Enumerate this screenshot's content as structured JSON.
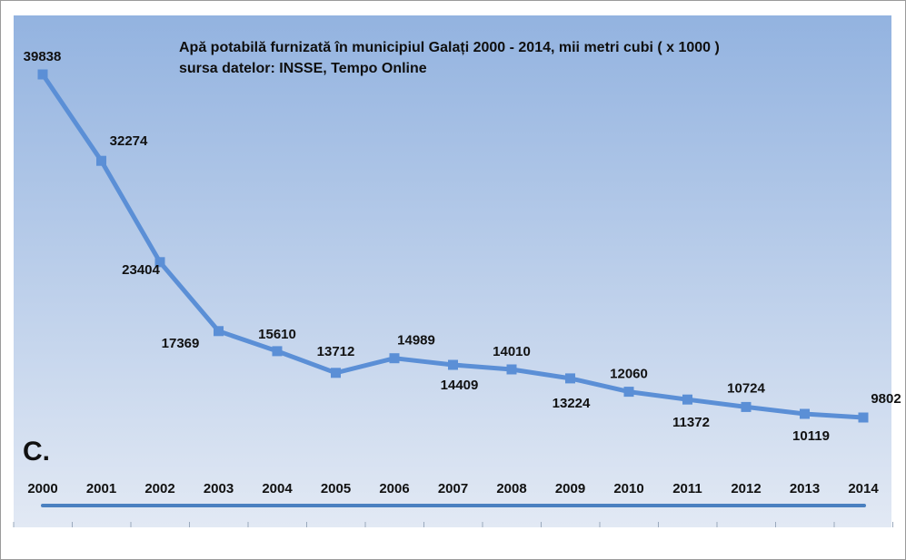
{
  "title": "Apă potabilă furnizată în municipiul Galați 2000 - 2014, mii metri cubi ( x 1000 )",
  "subtitle": "sursa datelor: INSSE, Tempo Online",
  "panel_letter": "C.",
  "colors": {
    "bg_top": "#93b3e0",
    "bg_bottom": "#e2e9f4",
    "line": "#5b8fd6",
    "marker": "#5b8fd6",
    "axis_line": "#4a80c0"
  },
  "chart_data": {
    "type": "line",
    "title": "Apă potabilă furnizată în municipiul Galați 2000 - 2014, mii metri cubi ( x 1000 )",
    "xlabel": "",
    "ylabel": "",
    "categories": [
      "2000",
      "2001",
      "2002",
      "2003",
      "2004",
      "2005",
      "2006",
      "2007",
      "2008",
      "2009",
      "2010",
      "2011",
      "2012",
      "2013",
      "2014"
    ],
    "series": [
      {
        "values": [
          39838,
          32274,
          23404,
          17369,
          15610,
          13712,
          14989,
          14409,
          14010,
          13224,
          12060,
          11372,
          10724,
          10119,
          9802
        ]
      }
    ],
    "data_labels": [
      "39838",
      "32274",
      "23404",
      "17369",
      "15610",
      "13712",
      "14989",
      "14409",
      "14010",
      "13224",
      "12060",
      "11372",
      "10724",
      "10119",
      "9802"
    ],
    "grid": false,
    "legend": "none"
  }
}
